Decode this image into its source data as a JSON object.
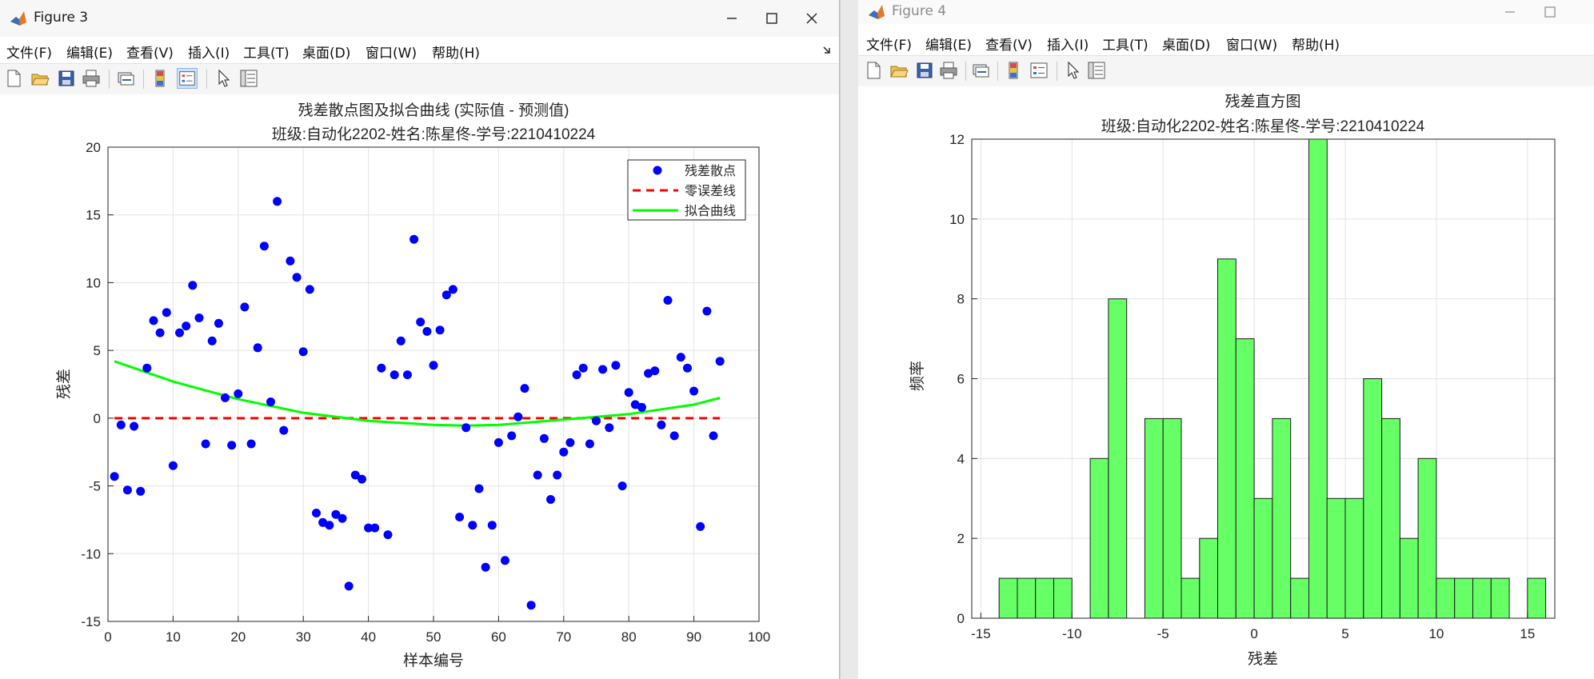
{
  "figure3": {
    "window_title": "Figure 3",
    "menus": [
      "文件(F)",
      "编辑(E)",
      "查看(V)",
      "插入(I)",
      "工具(T)",
      "桌面(D)",
      "窗口(W)",
      "帮助(H)"
    ],
    "chart_data": {
      "type": "scatter",
      "title": "残差散点图及拟合曲线 (实际值 - 预测值)",
      "subtitle": "班级:自动化2202-姓名:陈星佟-学号:2210410224",
      "xlabel": "样本编号",
      "ylabel": "残差",
      "xlim": [
        0,
        100
      ],
      "ylim": [
        -15,
        20
      ],
      "xticks": [
        0,
        10,
        20,
        30,
        40,
        50,
        60,
        70,
        80,
        90,
        100
      ],
      "yticks": [
        -15,
        -10,
        -5,
        0,
        5,
        10,
        15,
        20
      ],
      "grid": true,
      "legend_position": "top-right",
      "series": [
        {
          "name": "残差散点",
          "kind": "markers",
          "color": "#0000ff",
          "x": [
            1,
            2,
            3,
            4,
            5,
            6,
            7,
            8,
            9,
            10,
            11,
            12,
            13,
            14,
            15,
            16,
            17,
            18,
            19,
            20,
            21,
            22,
            23,
            24,
            25,
            26,
            27,
            28,
            29,
            30,
            31,
            32,
            33,
            34,
            35,
            36,
            37,
            38,
            39,
            40,
            41,
            42,
            43,
            44,
            45,
            46,
            47,
            48,
            49,
            50,
            51,
            52,
            53,
            54,
            55,
            56,
            57,
            58,
            59,
            60,
            61,
            62,
            63,
            64,
            65,
            66,
            67,
            68,
            69,
            70,
            71,
            72,
            73,
            74,
            75,
            76,
            77,
            78,
            79,
            80,
            81,
            82,
            83,
            84,
            85,
            86,
            87,
            88,
            89,
            90,
            91,
            92,
            93,
            94
          ],
          "y": [
            -4.3,
            -0.5,
            -5.3,
            -0.6,
            -5.4,
            3.7,
            7.2,
            6.3,
            7.8,
            -3.5,
            6.3,
            6.8,
            9.8,
            7.4,
            -1.9,
            5.7,
            7.0,
            1.5,
            -2.0,
            1.8,
            8.2,
            -1.9,
            5.2,
            12.7,
            1.2,
            16.0,
            -0.9,
            11.6,
            10.4,
            4.9,
            9.5,
            -7.0,
            -7.7,
            -7.9,
            -7.1,
            -7.4,
            -12.4,
            -4.2,
            -4.5,
            -8.1,
            -8.1,
            3.7,
            -8.6,
            3.2,
            5.7,
            3.2,
            13.2,
            7.1,
            6.4,
            3.9,
            6.5,
            9.1,
            9.5,
            -7.3,
            -0.7,
            -7.9,
            -5.2,
            -11.0,
            -7.9,
            -1.8,
            -10.5,
            -1.3,
            0.1,
            2.2,
            -13.8,
            -4.2,
            -1.5,
            -6.0,
            -4.2,
            -2.5,
            -1.8,
            3.2,
            3.7,
            -1.9,
            -0.2,
            3.6,
            -0.7,
            3.9,
            -5.0,
            1.9,
            1.0,
            0.8,
            3.3,
            3.5,
            -0.5,
            8.7,
            -1.3,
            4.5,
            3.7,
            2.0,
            -8.0,
            7.9,
            -1.3,
            4.2
          ]
        },
        {
          "name": "零误差线",
          "kind": "dashed-line",
          "color": "#ff0000",
          "x": [
            1,
            94
          ],
          "y": [
            0,
            0
          ]
        },
        {
          "name": "拟合曲线",
          "kind": "line",
          "color": "#00ff00",
          "x": [
            1,
            10,
            20,
            30,
            40,
            50,
            55,
            60,
            70,
            80,
            90,
            94
          ],
          "y": [
            4.2,
            2.7,
            1.4,
            0.4,
            -0.2,
            -0.5,
            -0.55,
            -0.5,
            -0.1,
            0.3,
            1.0,
            1.5
          ]
        }
      ]
    }
  },
  "figure4": {
    "window_title": "Figure 4",
    "menus": [
      "文件(F)",
      "编辑(E)",
      "查看(V)",
      "插入(I)",
      "工具(T)",
      "桌面(D)",
      "窗口(W)",
      "帮助(H)"
    ],
    "chart_data": {
      "type": "bar",
      "title": "残差直方图",
      "subtitle": "班级:自动化2202-姓名:陈星佟-学号:2210410224",
      "xlabel": "残差",
      "ylabel": "频率",
      "xlim": [
        -15.5,
        16.5
      ],
      "ylim": [
        0,
        12
      ],
      "xticks": [
        -15,
        -10,
        -5,
        0,
        5,
        10,
        15
      ],
      "yticks": [
        0,
        2,
        4,
        6,
        8,
        10,
        12
      ],
      "grid": true,
      "bar_color": "#66ff66",
      "bin_width": 1,
      "bin_starts": [
        -14,
        -13,
        -12,
        -11,
        -10,
        -9,
        -8,
        -7,
        -6,
        -5,
        -4,
        -3,
        -2,
        -1,
        0,
        1,
        2,
        3,
        4,
        5,
        6,
        7,
        8,
        9,
        10,
        11,
        12,
        13,
        14,
        15
      ],
      "counts": [
        1,
        1,
        1,
        1,
        0,
        4,
        8,
        0,
        5,
        5,
        1,
        2,
        9,
        7,
        3,
        5,
        1,
        12,
        3,
        3,
        6,
        5,
        2,
        4,
        1,
        1,
        1,
        1,
        0,
        1
      ]
    }
  }
}
